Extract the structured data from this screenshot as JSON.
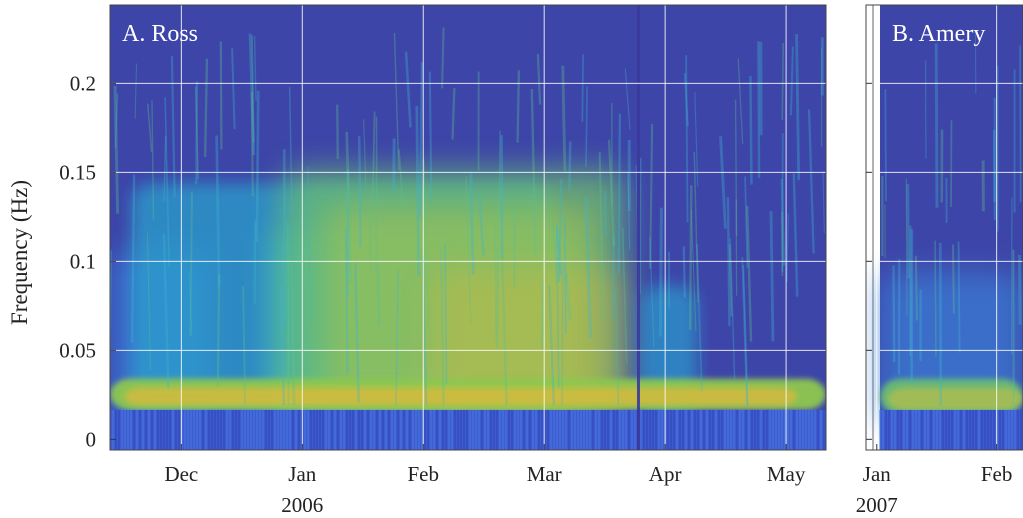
{
  "chart_data": [
    {
      "type": "spectrogram",
      "title": "A. Ross",
      "y_label": "Frequency (Hz)",
      "ylim": [
        -0.006,
        0.244
      ],
      "yticks": [
        0,
        0.05,
        0.1,
        0.15,
        0.2
      ],
      "xlim": [
        11.41,
        17.33
      ],
      "xticks": [
        {
          "value": 12,
          "label": "Dec"
        },
        {
          "value": 13,
          "label": "Jan"
        },
        {
          "value": 14,
          "label": "Feb"
        },
        {
          "value": 15,
          "label": "Mar"
        },
        {
          "value": 16,
          "label": "Apr"
        },
        {
          "value": 17,
          "label": "May"
        }
      ],
      "year_labels": [
        {
          "value": 13,
          "label": "2006"
        }
      ],
      "show_ytick_labels": true,
      "grid": true
    },
    {
      "type": "spectrogram",
      "title": "B. Amery",
      "ylim": [
        -0.006,
        0.244
      ],
      "yticks": [
        0,
        0.05,
        0.1,
        0.15,
        0.2
      ],
      "xlim": [
        0.91,
        2.22
      ],
      "xticks": [
        {
          "value": 1,
          "label": "Jan"
        },
        {
          "value": 2,
          "label": "Feb"
        }
      ],
      "year_labels": [
        {
          "value": 1,
          "label": "2007"
        }
      ],
      "show_ytick_labels": false,
      "grid": true
    }
  ]
}
